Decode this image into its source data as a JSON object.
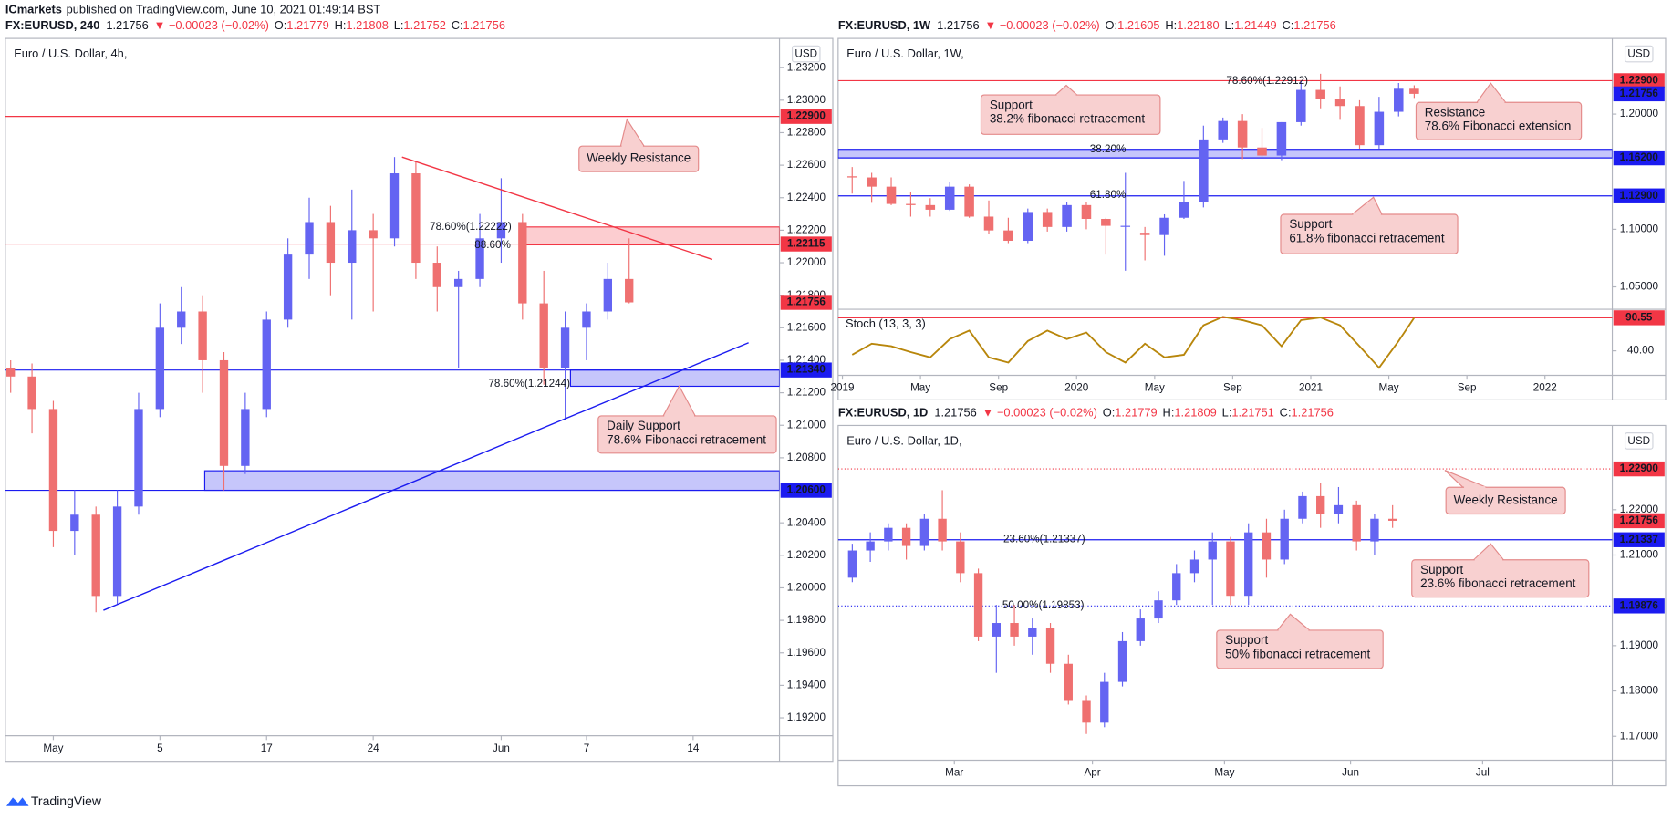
{
  "page": {
    "publisher": "ICmarkets",
    "published": "published on TradingView.com, June 10, 2021 01:49:14 BST",
    "footer": "TradingView"
  },
  "chart_data": [
    {
      "type": "candlestick",
      "title": "Euro / U.S. Dollar, 4h,",
      "currency": "USD",
      "header": {
        "symbol": "FX:EURUSD, 240",
        "price": "1.21756",
        "change": "▼ −0.00023 (−0.02%)",
        "ohlc": [
          {
            "k": "O:",
            "v": "1.21779"
          },
          {
            "k": "H:",
            "v": "1.21808"
          },
          {
            "k": "L:",
            "v": "1.21752"
          },
          {
            "k": "C:",
            "v": "1.21756"
          }
        ]
      },
      "up_color": "#6464f2",
      "down_color": "#ef7070",
      "x": [
        -2,
        -1,
        0,
        1,
        2,
        3,
        4,
        5,
        6,
        7,
        8,
        9,
        10,
        11,
        12,
        13,
        14,
        15,
        16,
        17,
        18,
        19,
        20,
        21,
        22,
        23,
        24,
        25,
        26,
        27
      ],
      "open": [
        1.2135,
        1.213,
        1.211,
        1.2035,
        1.2045,
        1.1995,
        1.205,
        1.211,
        1.216,
        1.217,
        1.214,
        1.2075,
        1.211,
        1.2165,
        1.2205,
        1.2225,
        1.22,
        1.222,
        1.2215,
        1.2255,
        1.22,
        1.2185,
        1.219,
        1.2215,
        1.2225,
        1.2175,
        1.2135,
        1.216,
        1.217,
        1.219
      ],
      "high": [
        1.214,
        1.2138,
        1.2115,
        1.206,
        1.205,
        1.206,
        1.212,
        1.2175,
        1.2185,
        1.218,
        1.2145,
        1.212,
        1.217,
        1.2215,
        1.224,
        1.2235,
        1.2245,
        1.223,
        1.2265,
        1.2262,
        1.221,
        1.2195,
        1.223,
        1.2252,
        1.223,
        1.2195,
        1.217,
        1.2175,
        1.22,
        1.2215
      ],
      "low": [
        1.212,
        1.2095,
        1.2025,
        1.202,
        1.1985,
        1.199,
        1.2045,
        1.2105,
        1.215,
        1.212,
        1.206,
        1.207,
        1.2105,
        1.216,
        1.219,
        1.218,
        1.2165,
        1.217,
        1.221,
        1.219,
        1.217,
        1.2135,
        1.2185,
        1.22,
        1.2165,
        1.2125,
        1.2103,
        1.214,
        1.2165,
        1.2175
      ],
      "close": [
        1.213,
        1.211,
        1.2035,
        1.2045,
        1.1995,
        1.205,
        1.211,
        1.216,
        1.217,
        1.214,
        1.2075,
        1.211,
        1.2165,
        1.2205,
        1.2225,
        1.22,
        1.222,
        1.2215,
        1.2255,
        1.22,
        1.2185,
        1.219,
        1.2215,
        1.2225,
        1.2175,
        1.2135,
        1.216,
        1.217,
        1.219,
        1.21756
      ],
      "xlim": [
        -2.25,
        34.05
      ],
      "ylim": [
        1.1909,
        1.2338
      ],
      "xticks": [
        {
          "value": 0,
          "label": "May"
        },
        5,
        {
          "value": 10,
          "label": "17"
        },
        {
          "value": 15,
          "label": "24"
        },
        {
          "value": 21,
          "label": "Jun"
        },
        {
          "value": 25,
          "label": "7"
        },
        {
          "value": 30,
          "label": "14"
        }
      ],
      "yticks": [
        {
          "value": 1.192,
          "label": "1.19200"
        },
        {
          "value": 1.194,
          "label": "1.19400"
        },
        {
          "value": 1.196,
          "label": "1.19600"
        },
        {
          "value": 1.198,
          "label": "1.19800"
        },
        {
          "value": 1.2,
          "label": "1.20000"
        },
        {
          "value": 1.202,
          "label": "1.20200"
        },
        {
          "value": 1.204,
          "label": "1.20400"
        },
        {
          "value": 1.208,
          "label": "1.20800"
        },
        {
          "value": 1.21,
          "label": "1.21000"
        },
        {
          "value": 1.212,
          "label": "1.21200"
        },
        {
          "value": 1.214,
          "label": "1.21400"
        },
        {
          "value": 1.216,
          "label": "1.21600"
        },
        {
          "value": 1.218,
          "label": "1.21800"
        },
        {
          "value": 1.22,
          "label": "1.22000"
        },
        {
          "value": 1.222,
          "label": "1.22200"
        },
        {
          "value": 1.224,
          "label": "1.22400"
        },
        {
          "value": 1.226,
          "label": "1.22600"
        },
        {
          "value": 1.228,
          "label": "1.22800"
        },
        {
          "value": 1.23,
          "label": "1.23000"
        },
        {
          "value": 1.232,
          "label": "1.23200"
        }
      ],
      "levels": [
        {
          "value": 1.229,
          "label": "1.22900",
          "color": "#f23645",
          "style": "solid"
        },
        {
          "value": 1.22115,
          "label": "1.22115",
          "color": "#f23645",
          "style": "solid"
        },
        {
          "value": 1.21756,
          "label": "1.21756",
          "color": "#f23645",
          "style": "none"
        },
        {
          "value": 1.2134,
          "label": "1.21340",
          "color": "#1b1bf0",
          "style": "solid"
        },
        {
          "value": 1.206,
          "label": "1.20600",
          "color": "#1b1bf0",
          "style": "solid"
        }
      ],
      "zones": [
        {
          "from": 1.2211,
          "to": 1.2222,
          "x_start": 22,
          "color": "#f23645"
        },
        {
          "from": 1.2124,
          "to": 1.2134,
          "x_start": 24.25,
          "color": "#1b1bf0"
        },
        {
          "from": 1.206,
          "to": 1.2072,
          "x_start": 7.1,
          "color": "#1b1bf0"
        }
      ],
      "trendlines": [
        {
          "x": [
            16.35,
            30.9
          ],
          "y": [
            1.2265,
            1.2202
          ],
          "color": "#f23645"
        },
        {
          "x": [
            2.35,
            32.6
          ],
          "y": [
            1.19862,
            1.21508
          ],
          "color": "#1b1bf0"
        }
      ],
      "fib_labels": [
        {
          "text": "78.60%(1.22222)",
          "color": "#1e53e5"
        },
        {
          "text": "88.60%",
          "color": "#1e53e5"
        },
        {
          "text": "78.60%(1.21244)",
          "color": "#1e53e5"
        }
      ],
      "annotations": [
        [
          "Weekly Resistance"
        ],
        [
          "Daily Support",
          "78.6% Fibonacci retracement"
        ]
      ]
    },
    {
      "type": "candlestick",
      "title": "Euro / U.S. Dollar, 1W,",
      "currency": "USD",
      "header": {
        "symbol": "FX:EURUSD, 1W",
        "price": "1.21756",
        "change": "▼ −0.00023 (−0.02%)",
        "ohlc": [
          {
            "k": "O:",
            "v": "1.21605"
          },
          {
            "k": "H:",
            "v": "1.22180"
          },
          {
            "k": "L:",
            "v": "1.21449"
          },
          {
            "k": "C:",
            "v": "1.21756"
          }
        ]
      },
      "up_color": "#6464f2",
      "down_color": "#ef7070",
      "x": [
        0.5,
        1.5,
        2.5,
        3.5,
        4.5,
        5.5,
        6.5,
        7.5,
        8.5,
        9.5,
        10.5,
        11.5,
        12.5,
        13.5,
        14.5,
        15.5,
        16.5,
        17.5,
        18.5,
        19.5,
        20.5,
        21.5,
        22.5,
        23.5,
        24.5,
        25.5,
        26.5,
        27.5,
        28.5,
        29.3
      ],
      "open": [
        1.146,
        1.145,
        1.137,
        1.122,
        1.121,
        1.117,
        1.137,
        1.111,
        1.099,
        1.09,
        1.115,
        1.102,
        1.121,
        1.109,
        1.103,
        1.097,
        1.095,
        1.11,
        1.124,
        1.178,
        1.194,
        1.171,
        1.164,
        1.193,
        1.221,
        1.213,
        1.207,
        1.173,
        1.202,
        1.222
      ],
      "high": [
        1.154,
        1.149,
        1.145,
        1.132,
        1.127,
        1.141,
        1.139,
        1.125,
        1.11,
        1.118,
        1.118,
        1.124,
        1.124,
        1.11,
        1.149,
        1.102,
        1.113,
        1.142,
        1.19,
        1.197,
        1.2,
        1.188,
        1.193,
        1.229,
        1.235,
        1.224,
        1.212,
        1.215,
        1.227,
        1.225
      ],
      "low": [
        1.131,
        1.123,
        1.121,
        1.111,
        1.111,
        1.116,
        1.11,
        1.096,
        1.088,
        1.088,
        1.098,
        1.098,
        1.1,
        1.078,
        1.064,
        1.073,
        1.077,
        1.109,
        1.119,
        1.175,
        1.161,
        1.163,
        1.16,
        1.19,
        1.205,
        1.195,
        1.17,
        1.17,
        1.198,
        1.214
      ],
      "close": [
        1.145,
        1.137,
        1.122,
        1.121,
        1.117,
        1.137,
        1.111,
        1.099,
        1.09,
        1.115,
        1.102,
        1.121,
        1.109,
        1.103,
        1.103,
        1.095,
        1.11,
        1.124,
        1.178,
        1.194,
        1.171,
        1.164,
        1.193,
        1.221,
        1.213,
        1.207,
        1.173,
        1.202,
        1.222,
        1.21756
      ],
      "xlim": [
        -0.22,
        39.45
      ],
      "ylim": [
        1.0306,
        1.2657
      ],
      "xticks": [
        {
          "value": 0,
          "label": "2019"
        },
        {
          "value": 4,
          "label": "May"
        },
        {
          "value": 8,
          "label": "Sep"
        },
        {
          "value": 12,
          "label": "2020"
        },
        {
          "value": 16,
          "label": "May"
        },
        {
          "value": 20,
          "label": "Sep"
        },
        {
          "value": 24,
          "label": "2021"
        },
        {
          "value": 28,
          "label": "May"
        },
        {
          "value": 32,
          "label": "Sep"
        },
        {
          "value": 36,
          "label": "2022"
        }
      ],
      "yticks": [
        {
          "value": 1.05,
          "label": "1.05000"
        },
        {
          "value": 1.1,
          "label": "1.10000"
        },
        {
          "value": 1.2,
          "label": "1.20000"
        }
      ],
      "levels": [
        {
          "value": 1.229,
          "label": "1.22900",
          "color": "#f23645",
          "style": "solid"
        },
        {
          "value": 1.21756,
          "label": "1.21756",
          "color": "#1b1bf0",
          "style": "none"
        },
        {
          "value": 1.162,
          "label": "1.16200",
          "color": "#1b1bf0",
          "style": "solid"
        },
        {
          "value": 1.129,
          "label": "1.12900",
          "color": "#1b1bf0",
          "style": "solid"
        }
      ],
      "zones": [
        {
          "from": 1.162,
          "to": 1.1694,
          "color": "#1b1bf0"
        }
      ],
      "trendlines": [],
      "fib_labels": [
        {
          "text": "78.60%(1.22912)",
          "color": "#1e53e5"
        },
        {
          "text": "38.20%",
          "color": "#1e53e5"
        },
        {
          "text": "61.80%",
          "color": "#d4a000"
        }
      ],
      "annotations": [
        [
          "Support",
          "38.2% fibonacci retracement"
        ],
        [
          "Resistance",
          "78.6% Fibonacci extension"
        ],
        [
          "Support",
          "61.8% fibonacci retracement"
        ]
      ],
      "indicator": {
        "name": "Stoch (13, 3, 3)",
        "color": "#b8860b",
        "x": [
          0.5,
          1.5,
          2.5,
          3.5,
          4.5,
          5.5,
          6.5,
          7.5,
          8.5,
          9.5,
          10.5,
          11.5,
          12.5,
          13.5,
          14.5,
          15.5,
          16.5,
          17.5,
          18.5,
          19.5,
          20.5,
          21.5,
          22.5,
          23.5,
          24.5,
          25.5,
          26.5,
          27.5,
          28.5,
          29.3
        ],
        "values": [
          34,
          51,
          47,
          38,
          30,
          58,
          71,
          30,
          22,
          55,
          71,
          58,
          68,
          38,
          22,
          51,
          30,
          34,
          79,
          92,
          87,
          79,
          47,
          87,
          91,
          79,
          47,
          14,
          55,
          90.55
        ],
        "ylim": [
          2.5,
          103.6
        ],
        "yticks": [
          {
            "value": 40,
            "label": "40.00"
          }
        ],
        "last_label": "90.55"
      }
    },
    {
      "type": "candlestick",
      "title": "Euro / U.S. Dollar, 1D,",
      "currency": "USD",
      "header": {
        "symbol": "FX:EURUSD, 1D",
        "price": "1.21756",
        "change": "▼ −0.00023 (−0.02%)",
        "ohlc": [
          {
            "k": "O:",
            "v": "1.21779"
          },
          {
            "k": "H:",
            "v": "1.21809"
          },
          {
            "k": "L:",
            "v": "1.21751"
          },
          {
            "k": "C:",
            "v": "1.21756"
          }
        ]
      },
      "up_color": "#6464f2",
      "down_color": "#ef7070",
      "x": [
        -17,
        -14,
        -11,
        -8,
        -5,
        -2,
        1,
        4,
        7,
        10,
        13,
        16,
        19,
        22,
        25,
        28,
        31,
        34,
        37,
        40,
        43,
        46,
        49,
        52,
        55,
        58,
        61,
        64,
        67,
        70,
        73
      ],
      "open": [
        1.205,
        1.211,
        1.213,
        1.216,
        1.212,
        1.218,
        1.213,
        1.206,
        1.192,
        1.195,
        1.192,
        1.194,
        1.186,
        1.178,
        1.173,
        1.182,
        1.191,
        1.196,
        1.2,
        1.206,
        1.209,
        1.213,
        1.201,
        1.215,
        1.209,
        1.218,
        1.223,
        1.219,
        1.221,
        1.213,
        1.218
      ],
      "high": [
        1.2125,
        1.215,
        1.217,
        1.217,
        1.219,
        1.2243,
        1.215,
        1.207,
        1.199,
        1.199,
        1.196,
        1.195,
        1.188,
        1.179,
        1.184,
        1.193,
        1.198,
        1.202,
        1.208,
        1.211,
        1.215,
        1.214,
        1.217,
        1.218,
        1.22,
        1.224,
        1.226,
        1.225,
        1.222,
        1.219,
        1.221
      ],
      "low": [
        1.204,
        1.2085,
        1.211,
        1.209,
        1.211,
        1.211,
        1.204,
        1.191,
        1.184,
        1.19,
        1.188,
        1.184,
        1.177,
        1.1705,
        1.172,
        1.181,
        1.19,
        1.195,
        1.199,
        1.204,
        1.199,
        1.199,
        1.199,
        1.205,
        1.208,
        1.217,
        1.216,
        1.217,
        1.211,
        1.21,
        1.216
      ],
      "close": [
        1.211,
        1.213,
        1.216,
        1.212,
        1.218,
        1.213,
        1.206,
        1.192,
        1.195,
        1.192,
        1.194,
        1.186,
        1.178,
        1.173,
        1.182,
        1.191,
        1.196,
        1.2,
        1.206,
        1.209,
        1.213,
        1.201,
        1.215,
        1.209,
        1.218,
        1.223,
        1.219,
        1.221,
        1.213,
        1.218,
        1.21756
      ],
      "xlim": [
        -19.36,
        109.6
      ],
      "ylim": [
        1.16471,
        1.23859
      ],
      "xticks": [
        {
          "value": 0,
          "label": "Mar"
        },
        {
          "value": 23,
          "label": "Apr"
        },
        {
          "value": 45,
          "label": "May"
        },
        {
          "value": 66,
          "label": "Jun"
        },
        {
          "value": 88,
          "label": "Jul"
        }
      ],
      "yticks": [
        {
          "value": 1.17,
          "label": "1.17000"
        },
        {
          "value": 1.18,
          "label": "1.18000"
        },
        {
          "value": 1.19,
          "label": "1.19000"
        },
        {
          "value": 1.21,
          "label": "1.21000"
        },
        {
          "value": 1.22,
          "label": "1.22000"
        }
      ],
      "levels": [
        {
          "value": 1.229,
          "label": "1.22900",
          "color": "#f23645",
          "style": "dotted"
        },
        {
          "value": 1.21756,
          "label": "1.21756",
          "color": "#f23645",
          "style": "none"
        },
        {
          "value": 1.21337,
          "label": "1.21337",
          "color": "#1b1bf0",
          "style": "solid"
        },
        {
          "value": 1.19876,
          "label": "1.19876",
          "color": "#1b1bf0",
          "style": "dotted"
        }
      ],
      "zones": [],
      "trendlines": [],
      "fib_labels": [
        {
          "text": "23.60%(1.21337)",
          "color": "#1e53e5"
        },
        {
          "text": "50.00%(1.19853)",
          "color": "#1e53e5"
        }
      ],
      "annotations": [
        [
          "Weekly Resistance"
        ],
        [
          "Support",
          "23.6% fibonacci retracement"
        ],
        [
          "Support",
          "50% fibonacci retracement"
        ]
      ]
    }
  ]
}
